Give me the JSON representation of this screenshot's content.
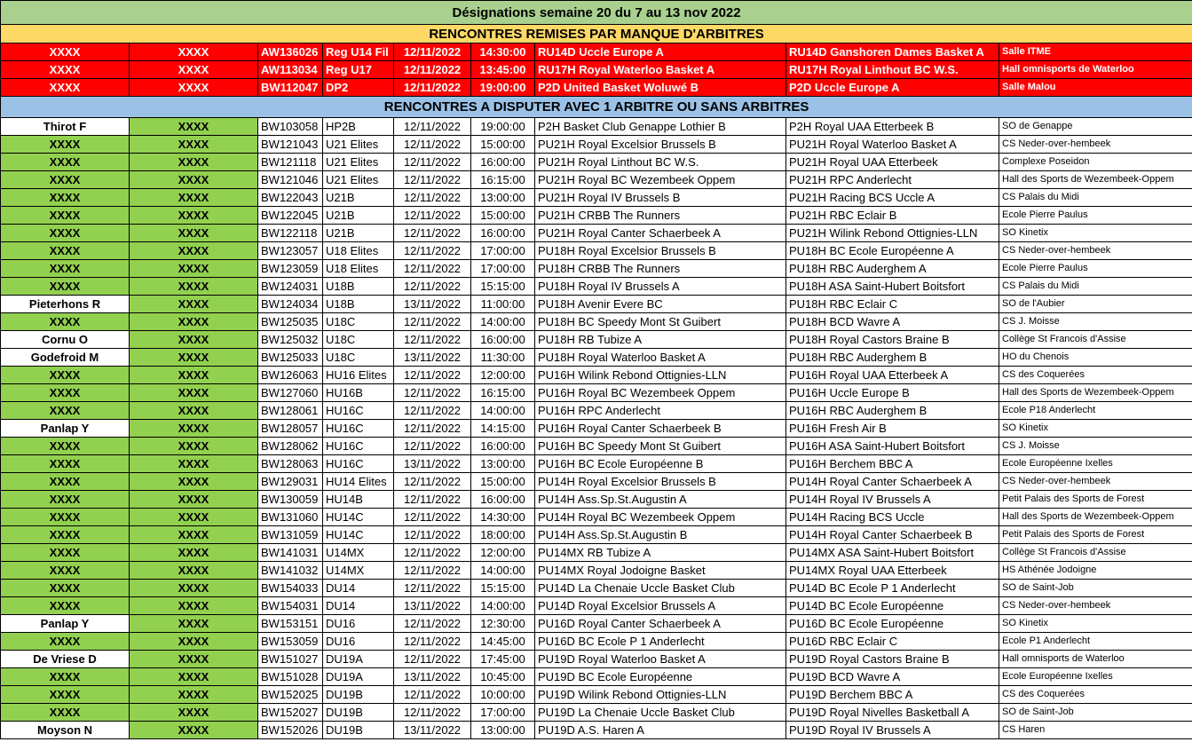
{
  "title": "Désignations semaine 20 du 7 au 13 nov 2022",
  "section_postponed": "RENCONTRES REMISES PAR MANQUE D'ARBITRES",
  "section_play": "RENCONTRES A DISPUTER AVEC 1 ARBITRE OU SANS ARBITRES",
  "colors": {
    "title_bg": "#a9d08e",
    "postponed_header_bg": "#ffd966",
    "postponed_row_bg": "#ff0000",
    "play_header_bg": "#9bc2e6",
    "unassigned_bg": "#92d050"
  },
  "postponed": [
    [
      "XXXX",
      "XXXX",
      "AW136026",
      "Reg U14 Fil",
      "12/11/2022",
      "14:30:00",
      "RU14D Uccle Europe A",
      "RU14D Ganshoren Dames Basket A",
      "Salle ITME"
    ],
    [
      "XXXX",
      "XXXX",
      "AW113034",
      "Reg U17",
      "12/11/2022",
      "13:45:00",
      "RU17H Royal Waterloo Basket A",
      "RU17H Royal Linthout BC W.S.",
      "Hall omnisports de Waterloo"
    ],
    [
      "XXXX",
      "XXXX",
      "BW112047",
      "DP2",
      "12/11/2022",
      "19:00:00",
      "P2D United Basket Woluwé B",
      "P2D Uccle Europe A",
      "Salle Malou"
    ]
  ],
  "matches": [
    [
      "Thirot F",
      "XXXX",
      "BW103058",
      "HP2B",
      "12/11/2022",
      "19:00:00",
      "P2H Basket Club Genappe Lothier B",
      "P2H Royal UAA Etterbeek B",
      "SO de Genappe"
    ],
    [
      "XXXX",
      "XXXX",
      "BW121043",
      "U21 Elites",
      "12/11/2022",
      "15:00:00",
      "PU21H Royal Excelsior Brussels B",
      "PU21H Royal Waterloo Basket A",
      "CS Neder-over-hembeek"
    ],
    [
      "XXXX",
      "XXXX",
      "BW121118",
      "U21 Elites",
      "12/11/2022",
      "16:00:00",
      "PU21H Royal Linthout BC W.S.",
      "PU21H Royal UAA Etterbeek",
      "Complexe Poseidon"
    ],
    [
      "XXXX",
      "XXXX",
      "BW121046",
      "U21 Elites",
      "12/11/2022",
      "16:15:00",
      "PU21H Royal BC Wezembeek Oppem",
      "PU21H RPC Anderlecht",
      "Hall des Sports de Wezembeek-Oppem"
    ],
    [
      "XXXX",
      "XXXX",
      "BW122043",
      "U21B",
      "12/11/2022",
      "13:00:00",
      "PU21H Royal IV Brussels B",
      "PU21H Racing BCS Uccle A",
      "CS Palais du Midi"
    ],
    [
      "XXXX",
      "XXXX",
      "BW122045",
      "U21B",
      "12/11/2022",
      "15:00:00",
      "PU21H CRBB The Runners",
      "PU21H RBC Eclair B",
      "Ecole Pierre Paulus"
    ],
    [
      "XXXX",
      "XXXX",
      "BW122118",
      "U21B",
      "12/11/2022",
      "16:00:00",
      "PU21H Royal Canter Schaerbeek A",
      "PU21H Wilink Rebond Ottignies-LLN",
      "SO Kinetix"
    ],
    [
      "XXXX",
      "XXXX",
      "BW123057",
      "U18 Elites",
      "12/11/2022",
      "17:00:00",
      "PU18H Royal Excelsior Brussels B",
      "PU18H BC Ecole Européenne A",
      "CS Neder-over-hembeek"
    ],
    [
      "XXXX",
      "XXXX",
      "BW123059",
      "U18 Elites",
      "12/11/2022",
      "17:00:00",
      "PU18H CRBB The Runners",
      "PU18H RBC Auderghem A",
      "Ecole Pierre Paulus"
    ],
    [
      "XXXX",
      "XXXX",
      "BW124031",
      "U18B",
      "12/11/2022",
      "15:15:00",
      "PU18H Royal IV Brussels A",
      "PU18H ASA Saint-Hubert Boitsfort",
      "CS Palais du Midi"
    ],
    [
      "Pieterhons R",
      "XXXX",
      "BW124034",
      "U18B",
      "13/11/2022",
      "11:00:00",
      "PU18H Avenir Evere BC",
      "PU18H RBC Eclair C",
      "SO de l'Aubier"
    ],
    [
      "XXXX",
      "XXXX",
      "BW125035",
      "U18C",
      "12/11/2022",
      "14:00:00",
      "PU18H BC Speedy Mont St Guibert",
      "PU18H BCD Wavre A",
      "CS J. Moisse"
    ],
    [
      "Cornu O",
      "XXXX",
      "BW125032",
      "U18C",
      "12/11/2022",
      "16:00:00",
      "PU18H RB Tubize A",
      "PU18H Royal Castors Braine B",
      "Collège St Francois d'Assise"
    ],
    [
      "Godefroid M",
      "XXXX",
      "BW125033",
      "U18C",
      "13/11/2022",
      "11:30:00",
      "PU18H Royal Waterloo Basket A",
      "PU18H RBC Auderghem B",
      "HO du Chenois"
    ],
    [
      "XXXX",
      "XXXX",
      "BW126063",
      "HU16 Elites",
      "12/11/2022",
      "12:00:00",
      "PU16H Wilink Rebond Ottignies-LLN",
      "PU16H Royal UAA Etterbeek A",
      "CS des Coquerées"
    ],
    [
      "XXXX",
      "XXXX",
      "BW127060",
      "HU16B",
      "12/11/2022",
      "16:15:00",
      "PU16H Royal BC Wezembeek Oppem",
      "PU16H Uccle Europe B",
      "Hall des Sports de Wezembeek-Oppem"
    ],
    [
      "XXXX",
      "XXXX",
      "BW128061",
      "HU16C",
      "12/11/2022",
      "14:00:00",
      "PU16H RPC Anderlecht",
      "PU16H RBC Auderghem B",
      "Ecole P18 Anderlecht"
    ],
    [
      "Panlap Y",
      "XXXX",
      "BW128057",
      "HU16C",
      "12/11/2022",
      "14:15:00",
      "PU16H Royal Canter Schaerbeek B",
      "PU16H Fresh Air B",
      "SO Kinetix"
    ],
    [
      "XXXX",
      "XXXX",
      "BW128062",
      "HU16C",
      "12/11/2022",
      "16:00:00",
      "PU16H BC Speedy Mont St Guibert",
      "PU16H ASA Saint-Hubert Boitsfort",
      "CS J. Moisse"
    ],
    [
      "XXXX",
      "XXXX",
      "BW128063",
      "HU16C",
      "13/11/2022",
      "13:00:00",
      "PU16H BC Ecole Européenne B",
      "PU16H Berchem BBC A",
      "Ecole Européenne Ixelles"
    ],
    [
      "XXXX",
      "XXXX",
      "BW129031",
      "HU14 Elites",
      "12/11/2022",
      "15:00:00",
      "PU14H Royal Excelsior Brussels B",
      "PU14H Royal Canter Schaerbeek A",
      "CS Neder-over-hembeek"
    ],
    [
      "XXXX",
      "XXXX",
      "BW130059",
      "HU14B",
      "12/11/2022",
      "16:00:00",
      "PU14H Ass.Sp.St.Augustin A",
      "PU14H Royal IV Brussels A",
      "Petit Palais des Sports de Forest"
    ],
    [
      "XXXX",
      "XXXX",
      "BW131060",
      "HU14C",
      "12/11/2022",
      "14:30:00",
      "PU14H Royal BC Wezembeek Oppem",
      "PU14H Racing BCS Uccle",
      "Hall des Sports de Wezembeek-Oppem"
    ],
    [
      "XXXX",
      "XXXX",
      "BW131059",
      "HU14C",
      "12/11/2022",
      "18:00:00",
      "PU14H Ass.Sp.St.Augustin B",
      "PU14H Royal Canter Schaerbeek B",
      "Petit Palais des Sports de Forest"
    ],
    [
      "XXXX",
      "XXXX",
      "BW141031",
      "U14MX",
      "12/11/2022",
      "12:00:00",
      "PU14MX RB Tubize A",
      "PU14MX ASA Saint-Hubert Boitsfort",
      "Collège St Francois d'Assise"
    ],
    [
      "XXXX",
      "XXXX",
      "BW141032",
      "U14MX",
      "12/11/2022",
      "14:00:00",
      "PU14MX Royal Jodoigne Basket",
      "PU14MX Royal UAA Etterbeek",
      "HS Athénée Jodoigne"
    ],
    [
      "XXXX",
      "XXXX",
      "BW154033",
      "DU14",
      "12/11/2022",
      "15:15:00",
      "PU14D La Chenaie Uccle Basket Club",
      "PU14D BC Ecole P 1 Anderlecht",
      "SO de Saint-Job"
    ],
    [
      "XXXX",
      "XXXX",
      "BW154031",
      "DU14",
      "13/11/2022",
      "14:00:00",
      "PU14D Royal Excelsior Brussels A",
      "PU14D BC Ecole Européenne",
      "CS Neder-over-hembeek"
    ],
    [
      "Panlap Y",
      "XXXX",
      "BW153151",
      "DU16",
      "12/11/2022",
      "12:30:00",
      "PU16D Royal Canter Schaerbeek A",
      "PU16D BC Ecole Européenne",
      "SO Kinetix"
    ],
    [
      "XXXX",
      "XXXX",
      "BW153059",
      "DU16",
      "12/11/2022",
      "14:45:00",
      "PU16D BC Ecole P 1 Anderlecht",
      "PU16D RBC Eclair C",
      "Ecole P1 Anderlecht"
    ],
    [
      "De Vriese D",
      "XXXX",
      "BW151027",
      "DU19A",
      "12/11/2022",
      "17:45:00",
      "PU19D Royal Waterloo Basket A",
      "PU19D Royal Castors Braine B",
      "Hall omnisports de Waterloo"
    ],
    [
      "XXXX",
      "XXXX",
      "BW151028",
      "DU19A",
      "13/11/2022",
      "10:45:00",
      "PU19D BC Ecole Européenne",
      "PU19D BCD Wavre A",
      "Ecole Européenne Ixelles"
    ],
    [
      "XXXX",
      "XXXX",
      "BW152025",
      "DU19B",
      "12/11/2022",
      "10:00:00",
      "PU19D Wilink Rebond Ottignies-LLN",
      "PU19D Berchem BBC A",
      "CS des Coquerées"
    ],
    [
      "XXXX",
      "XXXX",
      "BW152027",
      "DU19B",
      "12/11/2022",
      "17:00:00",
      "PU19D La Chenaie Uccle Basket Club",
      "PU19D Royal Nivelles Basketball A",
      "SO de Saint-Job"
    ],
    [
      "Moyson N",
      "XXXX",
      "BW152026",
      "DU19B",
      "13/11/2022",
      "13:00:00",
      "PU19D A.S. Haren A",
      "PU19D Royal IV Brussels A",
      "CS Haren"
    ]
  ]
}
